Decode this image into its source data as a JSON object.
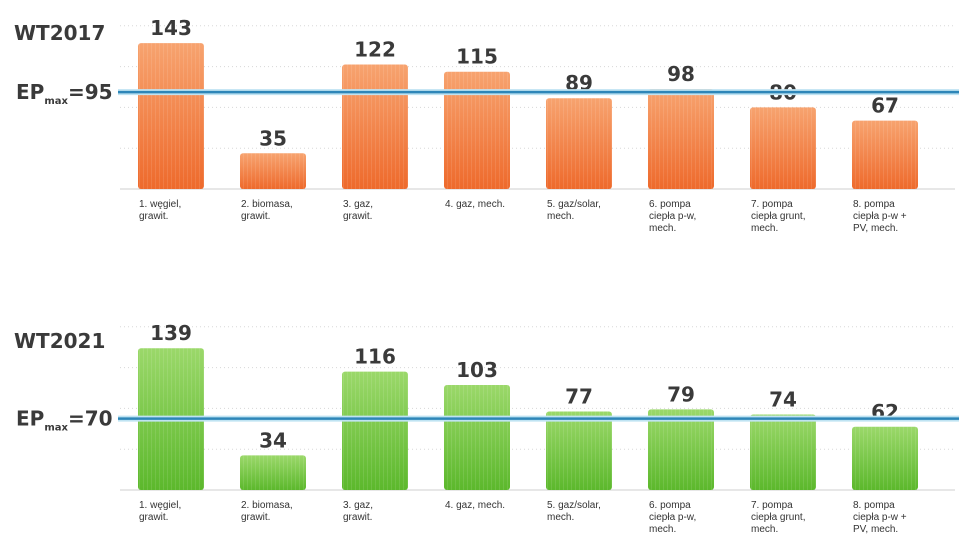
{
  "chart_data": [
    {
      "type": "bar",
      "title": "WT2017",
      "ep_label": "EP",
      "ep_sub": "max",
      "ep_eq": "=",
      "threshold": 95,
      "threshold_label": "95",
      "color": "#ee6a2c",
      "color_light": "#f7a36f",
      "categories": [
        [
          "1. węgiel,",
          "grawit."
        ],
        [
          "2. biomasa,",
          "grawit."
        ],
        [
          "3. gaz,",
          "grawit."
        ],
        [
          "4. gaz, mech."
        ],
        [
          "5. gaz/solar,",
          "mech."
        ],
        [
          "6. pompa",
          "ciepła p-w,",
          "mech."
        ],
        [
          "7. pompa",
          "ciepła grunt,",
          "mech."
        ],
        [
          "8. pompa",
          "ciepła p-w +",
          "PV, mech."
        ]
      ],
      "values": [
        143,
        35,
        122,
        115,
        89,
        98,
        80,
        67
      ],
      "ylim": [
        0,
        160
      ]
    },
    {
      "type": "bar",
      "title": "WT2021",
      "ep_label": "EP",
      "ep_sub": "max",
      "ep_eq": "=",
      "threshold": 70,
      "threshold_label": "70",
      "color": "#5cb82c",
      "color_light": "#9bd86a",
      "categories": [
        [
          "1. węgiel,",
          "grawit."
        ],
        [
          "2. biomasa,",
          "grawit."
        ],
        [
          "3. gaz,",
          "grawit."
        ],
        [
          "4. gaz, mech."
        ],
        [
          "5. gaz/solar,",
          "mech."
        ],
        [
          "6. pompa",
          "ciepła p-w,",
          "mech."
        ],
        [
          "7. pompa",
          "ciepła grunt,",
          "mech."
        ],
        [
          "8. pompa",
          "ciepła p-w +",
          "PV, mech."
        ]
      ],
      "values": [
        139,
        34,
        116,
        103,
        77,
        79,
        74,
        62
      ],
      "ylim": [
        0,
        160
      ]
    }
  ]
}
